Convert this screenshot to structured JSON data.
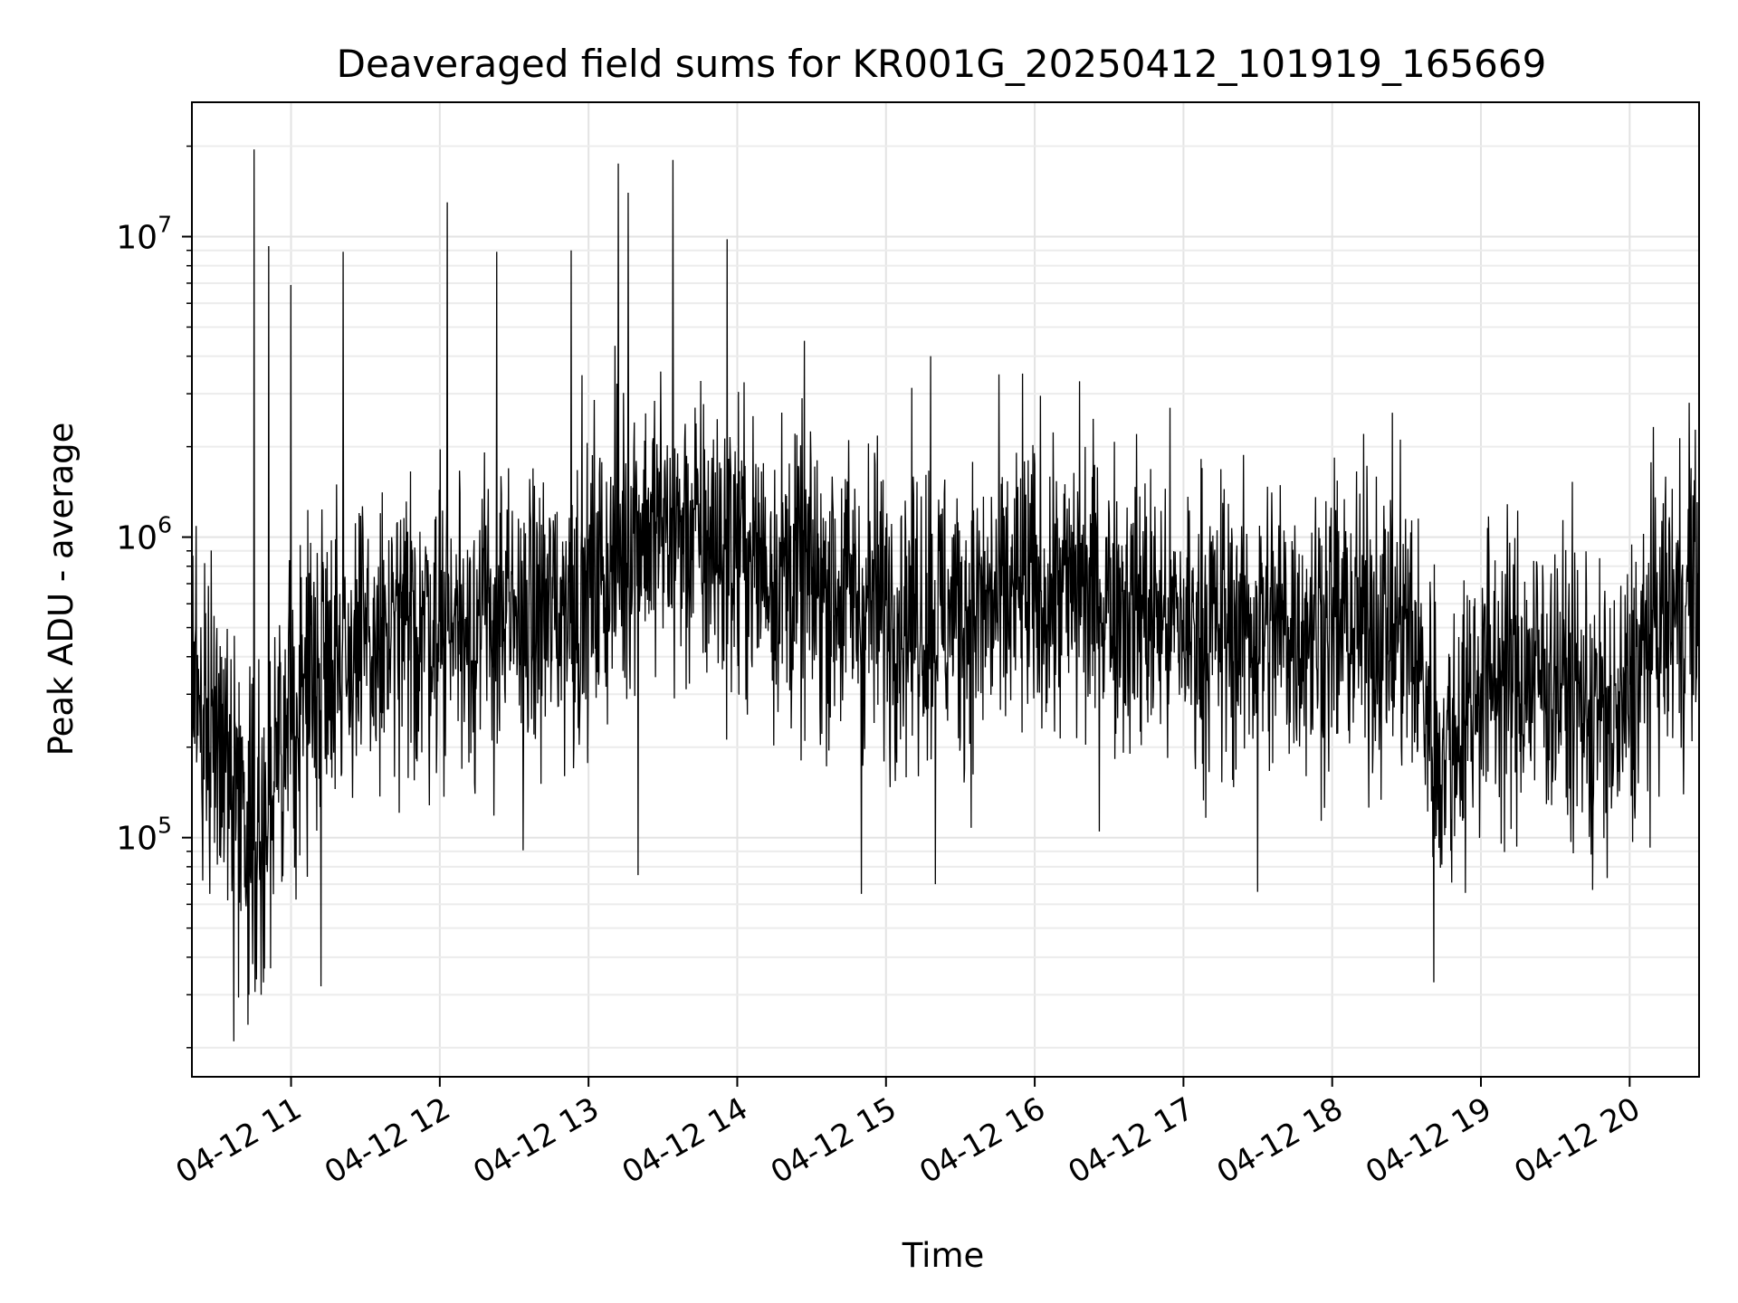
{
  "chart_data": {
    "type": "line",
    "title": "Deaveraged field sums for KR001G_20250412_101919_165669",
    "xlabel": "Time",
    "ylabel": "Peak ADU - average",
    "yscale": "log",
    "grid": true,
    "grid_minor": true,
    "line_color": "#000000",
    "xlim": [
      "2025-04-12T10:20:00",
      "2025-04-12T20:28:00"
    ],
    "ylim": [
      16000,
      28000000
    ],
    "xticks": [
      {
        "t": "2025-04-12T11:00:00",
        "label": "04-12 11"
      },
      {
        "t": "2025-04-12T12:00:00",
        "label": "04-12 12"
      },
      {
        "t": "2025-04-12T13:00:00",
        "label": "04-12 13"
      },
      {
        "t": "2025-04-12T14:00:00",
        "label": "04-12 14"
      },
      {
        "t": "2025-04-12T15:00:00",
        "label": "04-12 15"
      },
      {
        "t": "2025-04-12T16:00:00",
        "label": "04-12 16"
      },
      {
        "t": "2025-04-12T17:00:00",
        "label": "04-12 17"
      },
      {
        "t": "2025-04-12T18:00:00",
        "label": "04-12 18"
      },
      {
        "t": "2025-04-12T19:00:00",
        "label": "04-12 19"
      },
      {
        "t": "2025-04-12T20:00:00",
        "label": "04-12 20"
      }
    ],
    "yticks": [
      {
        "value": 100000,
        "base": "10",
        "exp": "5"
      },
      {
        "value": 1000000,
        "base": "10",
        "exp": "6"
      },
      {
        "value": 10000000,
        "base": "10",
        "exp": "7"
      }
    ],
    "series": [
      {
        "envelope": [
          {
            "t": "2025-04-12T10:20:00",
            "median": 300000
          },
          {
            "t": "2025-04-12T10:30:00",
            "median": 250000
          },
          {
            "t": "2025-04-12T10:40:00",
            "median": 130000
          },
          {
            "t": "2025-04-12T10:50:00",
            "median": 100000
          },
          {
            "t": "2025-04-12T11:00:00",
            "median": 250000
          },
          {
            "t": "2025-04-12T11:15:00",
            "median": 450000
          },
          {
            "t": "2025-04-12T11:30:00",
            "median": 400000
          },
          {
            "t": "2025-04-12T12:00:00",
            "median": 550000
          },
          {
            "t": "2025-04-12T12:30:00",
            "median": 500000
          },
          {
            "t": "2025-04-12T13:00:00",
            "median": 650000
          },
          {
            "t": "2025-04-12T13:20:00",
            "median": 1100000
          },
          {
            "t": "2025-04-12T13:40:00",
            "median": 1000000
          },
          {
            "t": "2025-04-12T14:00:00",
            "median": 900000
          },
          {
            "t": "2025-04-12T14:30:00",
            "median": 700000
          },
          {
            "t": "2025-04-12T15:00:00",
            "median": 600000
          },
          {
            "t": "2025-04-12T15:30:00",
            "median": 550000
          },
          {
            "t": "2025-04-12T16:00:00",
            "median": 650000
          },
          {
            "t": "2025-04-12T16:30:00",
            "median": 650000
          },
          {
            "t": "2025-04-12T17:00:00",
            "median": 500000
          },
          {
            "t": "2025-04-12T17:30:00",
            "median": 500000
          },
          {
            "t": "2025-04-12T18:00:00",
            "median": 520000
          },
          {
            "t": "2025-04-12T18:30:00",
            "median": 500000
          },
          {
            "t": "2025-04-12T18:45:00",
            "median": 180000
          },
          {
            "t": "2025-04-12T19:00:00",
            "median": 350000
          },
          {
            "t": "2025-04-12T19:30:00",
            "median": 350000
          },
          {
            "t": "2025-04-12T19:55:00",
            "median": 230000
          },
          {
            "t": "2025-04-12T20:10:00",
            "median": 500000
          },
          {
            "t": "2025-04-12T20:28:00",
            "median": 650000
          }
        ],
        "peaks": [
          {
            "t": "2025-04-12T10:45:00",
            "value": 19500000
          },
          {
            "t": "2025-04-12T10:51:00",
            "value": 9300000
          },
          {
            "t": "2025-04-12T11:00:00",
            "value": 6900000
          },
          {
            "t": "2025-04-12T11:21:00",
            "value": 8900000
          },
          {
            "t": "2025-04-12T12:03:00",
            "value": 13000000
          },
          {
            "t": "2025-04-12T12:23:00",
            "value": 8900000
          },
          {
            "t": "2025-04-12T12:53:00",
            "value": 9000000
          },
          {
            "t": "2025-04-12T13:12:00",
            "value": 17500000
          },
          {
            "t": "2025-04-12T13:16:00",
            "value": 14000000
          },
          {
            "t": "2025-04-12T13:34:00",
            "value": 18000000
          },
          {
            "t": "2025-04-12T13:56:00",
            "value": 9800000
          },
          {
            "t": "2025-04-12T14:27:00",
            "value": 4500000
          },
          {
            "t": "2025-04-12T15:18:00",
            "value": 4000000
          },
          {
            "t": "2025-04-12T15:55:00",
            "value": 3500000
          },
          {
            "t": "2025-04-12T16:18:00",
            "value": 3300000
          },
          {
            "t": "2025-04-12T20:24:00",
            "value": 2800000
          }
        ],
        "troughs": [
          {
            "t": "2025-04-12T10:37:00",
            "value": 21000
          },
          {
            "t": "2025-04-12T10:43:00",
            "value": 30000
          },
          {
            "t": "2025-04-12T10:48:00",
            "value": 30000
          },
          {
            "t": "2025-04-12T11:12:00",
            "value": 32000
          },
          {
            "t": "2025-04-12T13:20:00",
            "value": 75000
          },
          {
            "t": "2025-04-12T14:50:00",
            "value": 65000
          },
          {
            "t": "2025-04-12T15:20:00",
            "value": 70000
          },
          {
            "t": "2025-04-12T17:30:00",
            "value": 66000
          },
          {
            "t": "2025-04-12T18:41:00",
            "value": 33000
          },
          {
            "t": "2025-04-12T19:45:00",
            "value": 67000
          }
        ]
      }
    ]
  }
}
